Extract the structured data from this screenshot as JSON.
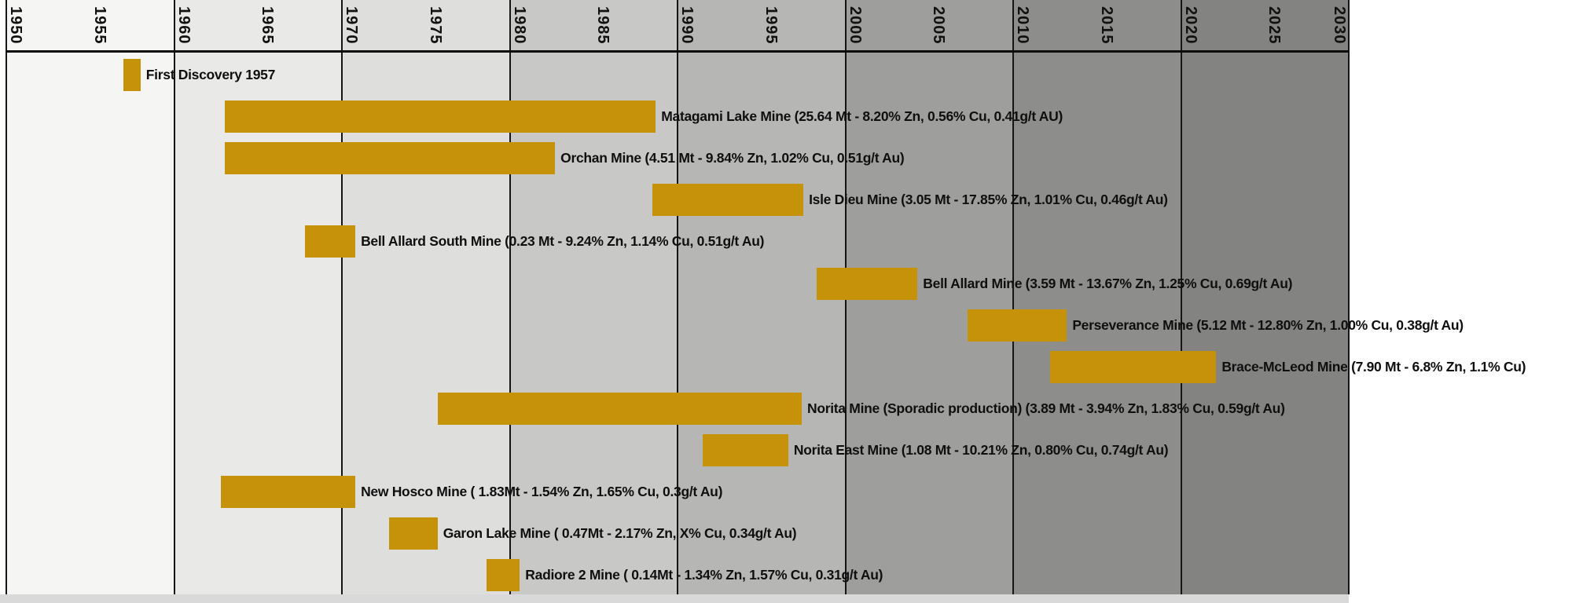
{
  "chart_data": {
    "type": "bar",
    "subtype": "gantt-timeline",
    "title": "",
    "x_axis": {
      "start": 1950,
      "end": 2030,
      "tick_interval": 5,
      "gridline_interval": 10,
      "tick_labels": [
        "1950",
        "1955",
        "1960",
        "1965",
        "1970",
        "1975",
        "1980",
        "1985",
        "1990",
        "1995",
        "2000",
        "2005",
        "2010",
        "2015",
        "2020",
        "2025",
        "2030"
      ]
    },
    "legend": "none",
    "grid": "vertical decade lines",
    "bar_color": "#c5920a",
    "gridline_color": "#151515",
    "decade_bands": [
      {
        "from": 1950,
        "to": 1960,
        "color": "#f5f5f3"
      },
      {
        "from": 1960,
        "to": 1970,
        "color": "#e9e9e7"
      },
      {
        "from": 1970,
        "to": 1980,
        "color": "#dededc"
      },
      {
        "from": 1980,
        "to": 1990,
        "color": "#c8c8c6"
      },
      {
        "from": 1990,
        "to": 2000,
        "color": "#b6b6b4"
      },
      {
        "from": 2000,
        "to": 2010,
        "color": "#9e9e9c"
      },
      {
        "from": 2010,
        "to": 2020,
        "color": "#8d8d8b"
      },
      {
        "from": 2020,
        "to": 2030,
        "color": "#838381"
      }
    ],
    "rows": [
      {
        "name": "First Discovery",
        "label": "First Discovery 1957",
        "start": 1957.0,
        "end": 1958.0
      },
      {
        "name": "Matagami Lake Mine",
        "label": "Matagami Lake Mine (25.64 Mt - 8.20% Zn, 0.56% Cu, 0.41g/t AU)",
        "start": 1963.0,
        "end": 1988.7
      },
      {
        "name": "Orchan Mine",
        "label": "Orchan Mine (4.51 Mt - 9.84% Zn, 1.02% Cu, 0.51g/t Au)",
        "start": 1963.0,
        "end": 1982.7
      },
      {
        "name": "Isle Dieu Mine",
        "label": "Isle Dieu Mine (3.05 Mt - 17.85% Zn, 1.01% Cu, 0.46g/t Au)",
        "start": 1988.5,
        "end": 1997.5
      },
      {
        "name": "Bell Allard South Mine",
        "label": "Bell Allard South Mine (0.23 Mt - 9.24% Zn, 1.14% Cu, 0.51g/t Au)",
        "start": 1967.8,
        "end": 1970.8
      },
      {
        "name": "Bell Allard Mine",
        "label": "Bell Allard Mine (3.59 Mt - 13.67% Zn, 1.25% Cu, 0.69g/t Au)",
        "start": 1998.3,
        "end": 2004.3
      },
      {
        "name": "Perseverance Mine",
        "label": "Perseverance Mine (5.12 Mt - 12.80% Zn, 1.00% Cu, 0.38g/t Au)",
        "start": 2007.3,
        "end": 2013.2
      },
      {
        "name": "Brace-McLeod Mine",
        "label": "Brace-McLeod Mine (7.90 Mt - 6.8% Zn, 1.1% Cu)",
        "start": 2012.2,
        "end": 2022.1
      },
      {
        "name": "Norita Mine",
        "label": "Norita Mine (Sporadic production) (3.89 Mt - 3.94% Zn, 1.83% Cu, 0.59g/t Au)",
        "start": 1975.7,
        "end": 1997.4
      },
      {
        "name": "Norita East Mine",
        "label": "Norita East Mine (1.08 Mt - 10.21% Zn, 0.80% Cu, 0.74g/t Au)",
        "start": 1991.5,
        "end": 1996.6
      },
      {
        "name": "New Hosco Mine",
        "label": "New Hosco Mine ( 1.83Mt - 1.54% Zn, 1.65% Cu, 0.3g/t Au)",
        "start": 1962.8,
        "end": 1970.8
      },
      {
        "name": "Garon Lake Mine",
        "label": "Garon Lake Mine ( 0.47Mt - 2.17% Zn, X% Cu, 0.34g/t Au)",
        "start": 1972.8,
        "end": 1975.7
      },
      {
        "name": "Radiore 2 Mine",
        "label": "Radiore 2 Mine ( 0.14Mt - 1.34% Zn, 1.57% Cu, 0.31g/t Au)",
        "start": 1978.6,
        "end": 1980.6
      }
    ]
  }
}
